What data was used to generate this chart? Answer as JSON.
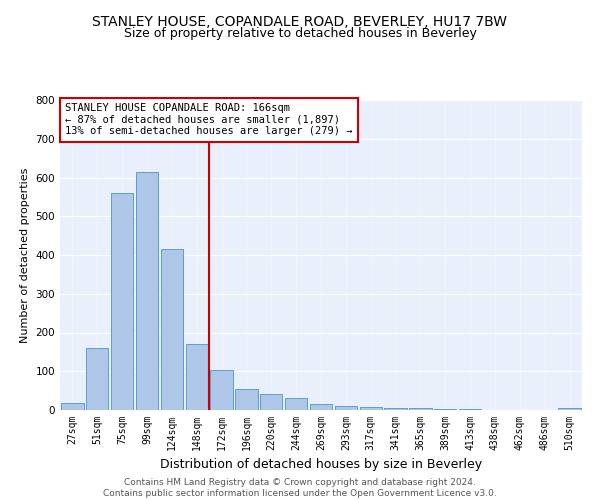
{
  "title": "STANLEY HOUSE, COPANDALE ROAD, BEVERLEY, HU17 7BW",
  "subtitle": "Size of property relative to detached houses in Beverley",
  "xlabel": "Distribution of detached houses by size in Beverley",
  "ylabel": "Number of detached properties",
  "categories": [
    "27sqm",
    "51sqm",
    "75sqm",
    "99sqm",
    "124sqm",
    "148sqm",
    "172sqm",
    "196sqm",
    "220sqm",
    "244sqm",
    "269sqm",
    "293sqm",
    "317sqm",
    "341sqm",
    "365sqm",
    "389sqm",
    "413sqm",
    "438sqm",
    "462sqm",
    "486sqm",
    "510sqm"
  ],
  "values": [
    18,
    160,
    560,
    615,
    415,
    170,
    103,
    55,
    42,
    30,
    15,
    10,
    8,
    5,
    4,
    3,
    2,
    1,
    1,
    0,
    5
  ],
  "bar_color": "#aec6e8",
  "bar_edge_color": "#5a9fd4",
  "vline_color": "#cc0000",
  "vline_x_index": 6,
  "annotation_text": "STANLEY HOUSE COPANDALE ROAD: 166sqm\n← 87% of detached houses are smaller (1,897)\n13% of semi-detached houses are larger (279) →",
  "annotation_box_color": "#ffffff",
  "annotation_box_edge_color": "#cc0000",
  "ylim": [
    0,
    800
  ],
  "yticks": [
    0,
    100,
    200,
    300,
    400,
    500,
    600,
    700,
    800
  ],
  "bg_color": "#eaf0fb",
  "footer_line1": "Contains HM Land Registry data © Crown copyright and database right 2024.",
  "footer_line2": "Contains public sector information licensed under the Open Government Licence v3.0.",
  "title_fontsize": 10,
  "subtitle_fontsize": 9,
  "ylabel_fontsize": 8,
  "xlabel_fontsize": 9,
  "tick_fontsize": 7,
  "annotation_fontsize": 7.5,
  "footer_fontsize": 6.5
}
